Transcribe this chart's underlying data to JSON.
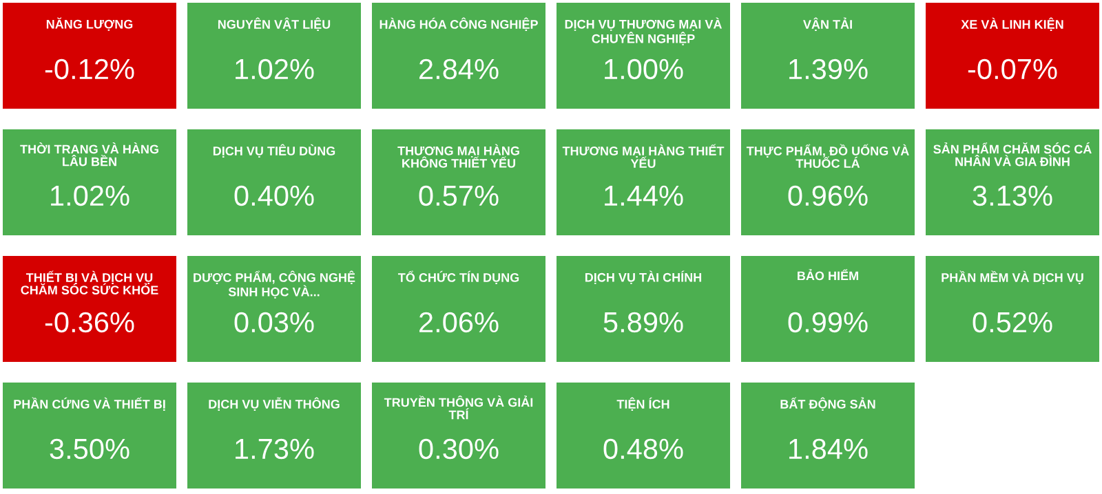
{
  "chart_data": {
    "type": "other",
    "categories": [
      "NĂNG LƯỢNG",
      "NGUYÊN VẬT LIỆU",
      "HÀNG HÓA CÔNG NGHIỆP",
      "DỊCH VỤ THƯƠNG MẠI VÀ CHUYÊN NGHIỆP",
      "VẬN TẢI",
      "XE VÀ LINH KIỆN",
      "THỜI TRANG VÀ HÀNG LÂU BỀN",
      "DỊCH VỤ TIÊU DÙNG",
      "THƯƠNG MẠI HÀNG KHÔNG THIẾT YẾU",
      "THƯƠNG MẠI HÀNG THIẾT YẾU",
      "THỰC PHẨM, ĐỒ UỐNG VÀ THUỐC LÁ",
      "SẢN PHẨM CHĂM SÓC CÁ NHÂN VÀ GIA ĐÌNH",
      "THIẾT BỊ VÀ DỊCH VỤ CHĂM SÓC SỨC KHỎE",
      "DƯỢC PHẨM, CÔNG NGHỆ SINH HỌC VÀ...",
      "TỔ CHỨC TÍN DỤNG",
      "DỊCH VỤ TÀI CHÍNH",
      "BẢO HIỂM",
      "PHẦN MỀM VÀ DỊCH VỤ",
      "PHẦN CỨNG VÀ THIẾT BỊ",
      "DỊCH VỤ VIỄN THÔNG",
      "TRUYỀN THÔNG VÀ GIẢI TRÍ",
      "TIỆN ÍCH",
      "BẤT ĐỘNG SẢN"
    ],
    "values": [
      -0.12,
      1.02,
      2.84,
      1.0,
      1.39,
      -0.07,
      1.02,
      0.4,
      0.57,
      1.44,
      0.96,
      3.13,
      -0.36,
      0.03,
      2.06,
      5.89,
      0.99,
      0.52,
      3.5,
      1.73,
      0.3,
      0.48,
      1.84
    ],
    "value_labels": [
      "-0.12%",
      "1.02%",
      "2.84%",
      "1.00%",
      "1.39%",
      "-0.07%",
      "1.02%",
      "0.40%",
      "0.57%",
      "1.44%",
      "0.96%",
      "3.13%",
      "-0.36%",
      "0.03%",
      "2.06%",
      "5.89%",
      "0.99%",
      "0.52%",
      "3.50%",
      "1.73%",
      "0.30%",
      "0.48%",
      "1.84%"
    ],
    "colors": [
      "#d50000",
      "#4caf50",
      "#4caf50",
      "#4caf50",
      "#4caf50",
      "#d50000",
      "#4caf50",
      "#4caf50",
      "#4caf50",
      "#4caf50",
      "#4caf50",
      "#4caf50",
      "#d50000",
      "#4caf50",
      "#4caf50",
      "#4caf50",
      "#4caf50",
      "#4caf50",
      "#4caf50",
      "#4caf50",
      "#4caf50",
      "#4caf50",
      "#4caf50"
    ]
  }
}
